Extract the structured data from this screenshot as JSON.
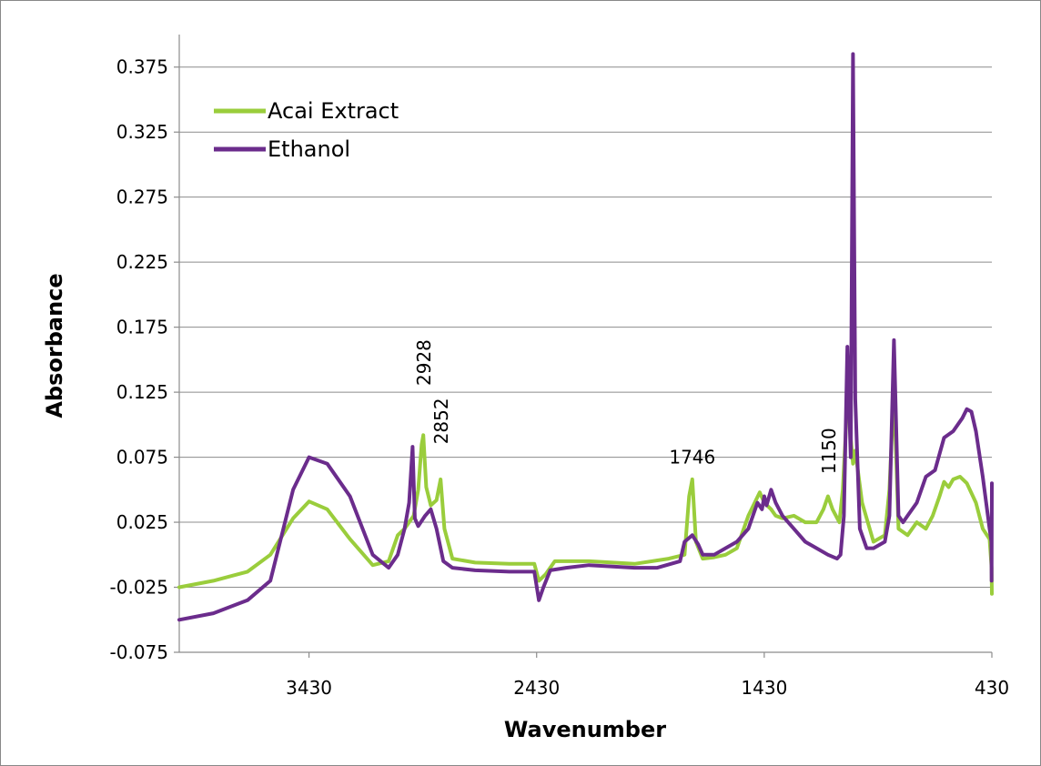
{
  "chart_data": {
    "type": "line",
    "xlabel": "Wavenumber",
    "ylabel": "Absorbance",
    "xlim": [
      4000,
      430
    ],
    "ylim": [
      -0.075,
      0.4
    ],
    "x_reversed": true,
    "grid": "horizontal",
    "legend_position": "top-left",
    "x_ticks": [
      3430,
      2430,
      1430,
      430
    ],
    "x_tick_labels": [
      "3430",
      "2430",
      "1430",
      "430"
    ],
    "y_ticks": [
      -0.075,
      -0.025,
      0.025,
      0.075,
      0.125,
      0.175,
      0.225,
      0.275,
      0.325,
      0.375
    ],
    "y_tick_labels": [
      "-0.075",
      "-0.025",
      "0.025",
      "0.075",
      "0.125",
      "0.175",
      "0.225",
      "0.275",
      "0.325",
      "0.375"
    ],
    "series": [
      {
        "name": "Acai Extract",
        "color": "#9ACD3C",
        "x": [
          4000,
          3850,
          3700,
          3600,
          3500,
          3430,
          3350,
          3250,
          3150,
          3080,
          3040,
          3010,
          2970,
          2950,
          2935,
          2928,
          2915,
          2895,
          2870,
          2852,
          2835,
          2800,
          2700,
          2550,
          2440,
          2420,
          2390,
          2350,
          2200,
          2000,
          1850,
          1780,
          1760,
          1746,
          1730,
          1700,
          1650,
          1600,
          1550,
          1500,
          1450,
          1430,
          1400,
          1380,
          1350,
          1300,
          1250,
          1200,
          1170,
          1150,
          1130,
          1100,
          1085,
          1060,
          1050,
          1040,
          1030,
          1000,
          950,
          900,
          880,
          860,
          840,
          800,
          760,
          720,
          690,
          660,
          640,
          620,
          600,
          570,
          540,
          500,
          470,
          440,
          431,
          430
        ],
        "y": [
          -0.025,
          -0.02,
          -0.013,
          0.0,
          0.028,
          0.041,
          0.035,
          0.012,
          -0.008,
          -0.005,
          0.015,
          0.02,
          0.03,
          0.05,
          0.085,
          0.092,
          0.052,
          0.038,
          0.042,
          0.058,
          0.02,
          -0.003,
          -0.006,
          -0.007,
          -0.007,
          -0.02,
          -0.015,
          -0.005,
          -0.005,
          -0.007,
          -0.003,
          0.0,
          0.045,
          0.058,
          0.01,
          -0.003,
          -0.002,
          0.0,
          0.005,
          0.03,
          0.048,
          0.04,
          0.035,
          0.03,
          0.028,
          0.03,
          0.025,
          0.025,
          0.035,
          0.045,
          0.035,
          0.025,
          0.05,
          0.135,
          0.09,
          0.07,
          0.08,
          0.04,
          0.01,
          0.015,
          0.05,
          0.128,
          0.02,
          0.015,
          0.025,
          0.02,
          0.03,
          0.045,
          0.056,
          0.052,
          0.058,
          0.06,
          0.055,
          0.04,
          0.02,
          0.012,
          -0.01,
          -0.03
        ]
      },
      {
        "name": "Ethanol",
        "color": "#6B2C8C",
        "x": [
          4000,
          3850,
          3700,
          3600,
          3500,
          3430,
          3350,
          3250,
          3150,
          3080,
          3040,
          3010,
          2990,
          2975,
          2965,
          2950,
          2920,
          2895,
          2870,
          2840,
          2800,
          2700,
          2550,
          2440,
          2420,
          2400,
          2370,
          2300,
          2200,
          2000,
          1900,
          1800,
          1780,
          1746,
          1720,
          1700,
          1650,
          1600,
          1550,
          1500,
          1460,
          1440,
          1430,
          1420,
          1400,
          1380,
          1350,
          1300,
          1250,
          1200,
          1150,
          1110,
          1095,
          1080,
          1065,
          1050,
          1040,
          1030,
          1010,
          980,
          950,
          900,
          880,
          860,
          840,
          820,
          800,
          760,
          720,
          680,
          640,
          600,
          560,
          540,
          520,
          500,
          470,
          440,
          432,
          431,
          430
        ],
        "y": [
          -0.05,
          -0.045,
          -0.035,
          -0.02,
          0.05,
          0.075,
          0.07,
          0.045,
          0.0,
          -0.01,
          0.0,
          0.02,
          0.04,
          0.083,
          0.028,
          0.022,
          0.03,
          0.035,
          0.02,
          -0.005,
          -0.01,
          -0.012,
          -0.013,
          -0.013,
          -0.035,
          -0.025,
          -0.012,
          -0.01,
          -0.008,
          -0.01,
          -0.01,
          -0.005,
          0.01,
          0.015,
          0.008,
          0.0,
          0.0,
          0.005,
          0.01,
          0.02,
          0.04,
          0.035,
          0.045,
          0.038,
          0.05,
          0.04,
          0.03,
          0.02,
          0.01,
          0.005,
          0.0,
          -0.003,
          0.0,
          0.03,
          0.16,
          0.075,
          0.385,
          0.12,
          0.02,
          0.005,
          0.005,
          0.01,
          0.03,
          0.165,
          0.03,
          0.025,
          0.03,
          0.04,
          0.06,
          0.065,
          0.09,
          0.095,
          0.105,
          0.112,
          0.11,
          0.095,
          0.06,
          0.02,
          0.01,
          -0.02,
          0.055
        ]
      }
    ],
    "annotations": [
      {
        "text": "2928",
        "x": 2928,
        "y": 0.13,
        "rotate": -90
      },
      {
        "text": "2852",
        "x": 2852,
        "y": 0.085,
        "rotate": -90
      },
      {
        "text": "1746",
        "x": 1746,
        "y": 0.07,
        "rotate": 0
      },
      {
        "text": "1150",
        "x": 1150,
        "y": 0.062,
        "rotate": -90
      }
    ]
  }
}
